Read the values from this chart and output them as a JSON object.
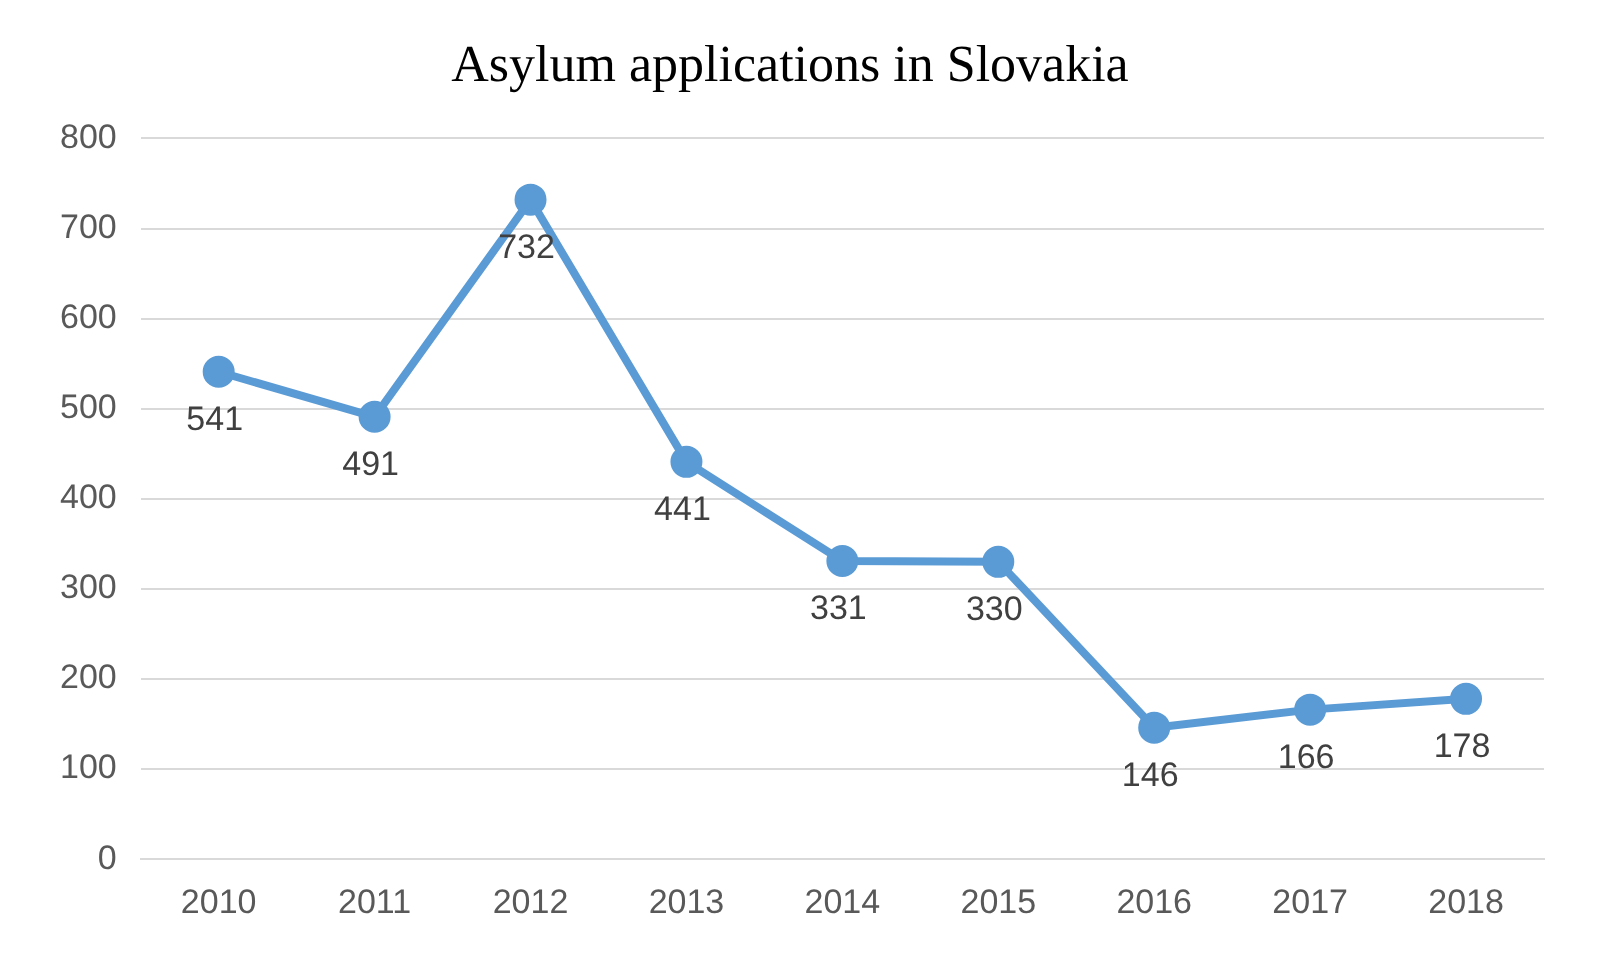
{
  "chart_data": {
    "type": "line",
    "title": "Asylum applications in Slovakia",
    "categories": [
      "2010",
      "2011",
      "2012",
      "2013",
      "2014",
      "2015",
      "2016",
      "2017",
      "2018"
    ],
    "series": [
      {
        "color": "#5b9bd5",
        "values": [
          541,
          491,
          732,
          441,
          331,
          330,
          146,
          166,
          178
        ]
      }
    ],
    "ylim": [
      0,
      800
    ],
    "yticks": [
      0,
      100,
      200,
      300,
      400,
      500,
      600,
      700,
      800
    ],
    "grid": "y",
    "legend": false,
    "marker": "circle",
    "line_style": "solid",
    "data_labels": true
  }
}
